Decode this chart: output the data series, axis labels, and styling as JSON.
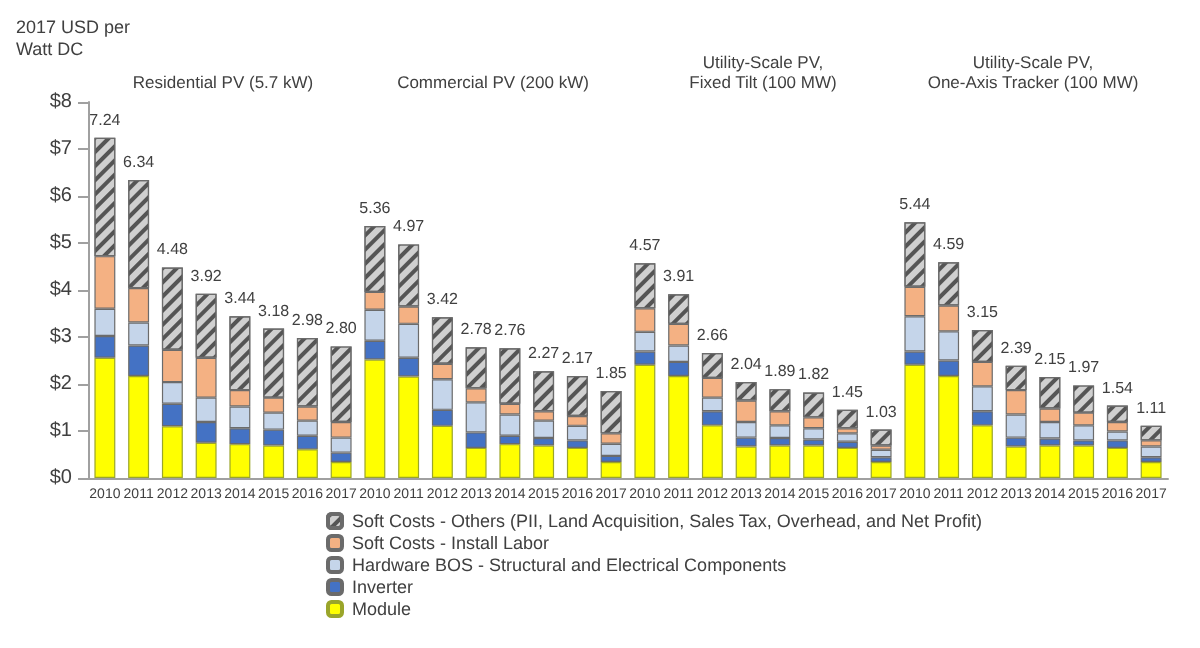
{
  "chart_data": {
    "type": "bar",
    "stacked": true,
    "ylabel": "2017 USD per Watt DC",
    "categories": [
      "2010",
      "2011",
      "2012",
      "2013",
      "2014",
      "2015",
      "2016",
      "2017",
      "2010",
      "2011",
      "2012",
      "2013",
      "2014",
      "2015",
      "2016",
      "2017",
      "2010",
      "2011",
      "2012",
      "2013",
      "2014",
      "2015",
      "2016",
      "2017",
      "2010",
      "2011",
      "2012",
      "2013",
      "2014",
      "2015",
      "2016",
      "2017"
    ],
    "series": [
      {
        "name": "Module",
        "color": "#ffff00",
        "values": [
          2.56,
          2.17,
          1.1,
          0.75,
          0.72,
          0.69,
          0.61,
          0.34,
          2.52,
          2.16,
          1.11,
          0.64,
          0.72,
          0.69,
          0.64,
          0.34,
          2.41,
          2.17,
          1.12,
          0.67,
          0.69,
          0.69,
          0.64,
          0.34,
          2.41,
          2.17,
          1.12,
          0.67,
          0.69,
          0.69,
          0.64,
          0.34
        ]
      },
      {
        "name": "Inverter",
        "color": "#4472c4",
        "values": [
          0.46,
          0.65,
          0.48,
          0.44,
          0.34,
          0.34,
          0.29,
          0.2,
          0.4,
          0.4,
          0.34,
          0.33,
          0.18,
          0.16,
          0.16,
          0.13,
          0.28,
          0.3,
          0.3,
          0.19,
          0.16,
          0.13,
          0.13,
          0.1,
          0.28,
          0.33,
          0.3,
          0.19,
          0.15,
          0.11,
          0.16,
          0.1
        ]
      },
      {
        "name": "Hardware BOS - Structural and Electrical Components",
        "color": "#c5d5ea",
        "values": [
          0.58,
          0.49,
          0.46,
          0.52,
          0.46,
          0.36,
          0.32,
          0.32,
          0.66,
          0.72,
          0.65,
          0.64,
          0.45,
          0.37,
          0.31,
          0.26,
          0.42,
          0.35,
          0.29,
          0.33,
          0.27,
          0.24,
          0.18,
          0.16,
          0.75,
          0.62,
          0.53,
          0.49,
          0.35,
          0.32,
          0.19,
          0.23
        ]
      },
      {
        "name": "Soft Costs - Install Labor",
        "color": "#f4b183",
        "values": [
          1.12,
          0.73,
          0.69,
          0.85,
          0.35,
          0.32,
          0.3,
          0.33,
          0.38,
          0.37,
          0.33,
          0.3,
          0.23,
          0.2,
          0.21,
          0.22,
          0.5,
          0.46,
          0.42,
          0.46,
          0.3,
          0.23,
          0.11,
          0.09,
          0.63,
          0.55,
          0.52,
          0.52,
          0.29,
          0.27,
          0.2,
          0.13
        ]
      },
      {
        "name": "Soft Costs - Others (PII, Land Acquisition, Sales Tax, Overhead, and Net Profit)",
        "color": "#d0d0d0",
        "values": [
          2.52,
          2.3,
          1.75,
          1.36,
          1.57,
          1.47,
          1.46,
          1.61,
          1.4,
          1.32,
          0.99,
          0.87,
          1.18,
          0.85,
          0.85,
          0.9,
          0.96,
          0.63,
          0.53,
          0.39,
          0.47,
          0.53,
          0.39,
          0.34,
          1.37,
          0.92,
          0.68,
          0.52,
          0.67,
          0.58,
          0.35,
          0.31
        ]
      }
    ],
    "totals": [
      "7.24",
      "6.34",
      "4.48",
      "3.92",
      "3.44",
      "3.18",
      "2.98",
      "2.80",
      "5.36",
      "4.97",
      "3.42",
      "2.78",
      "2.76",
      "2.27",
      "2.17",
      "1.85",
      "4.57",
      "3.91",
      "2.66",
      "2.04",
      "1.89",
      "1.82",
      "1.45",
      "1.03",
      "5.44",
      "4.59",
      "3.15",
      "2.39",
      "2.15",
      "1.97",
      "1.54",
      "1.11"
    ],
    "annotations": [
      "Residential PV (5.7 kW)",
      "Commercial PV (200 kW)",
      "Utility-Scale PV,\nFixed Tilt (100 MW)",
      "Utility-Scale PV,\nOne-Axis Tracker (100 MW)"
    ],
    "ylim": [
      0,
      8
    ],
    "yticks": [
      {
        "value": 0,
        "label": "$0"
      },
      {
        "value": 1,
        "label": "$1"
      },
      {
        "value": 2,
        "label": "$2"
      },
      {
        "value": 3,
        "label": "$3"
      },
      {
        "value": 4,
        "label": "$4"
      },
      {
        "value": 5,
        "label": "$5"
      },
      {
        "value": 6,
        "label": "$6"
      },
      {
        "value": 7,
        "label": "$7"
      },
      {
        "value": 8,
        "label": "$8"
      }
    ],
    "legend": "bottom"
  }
}
